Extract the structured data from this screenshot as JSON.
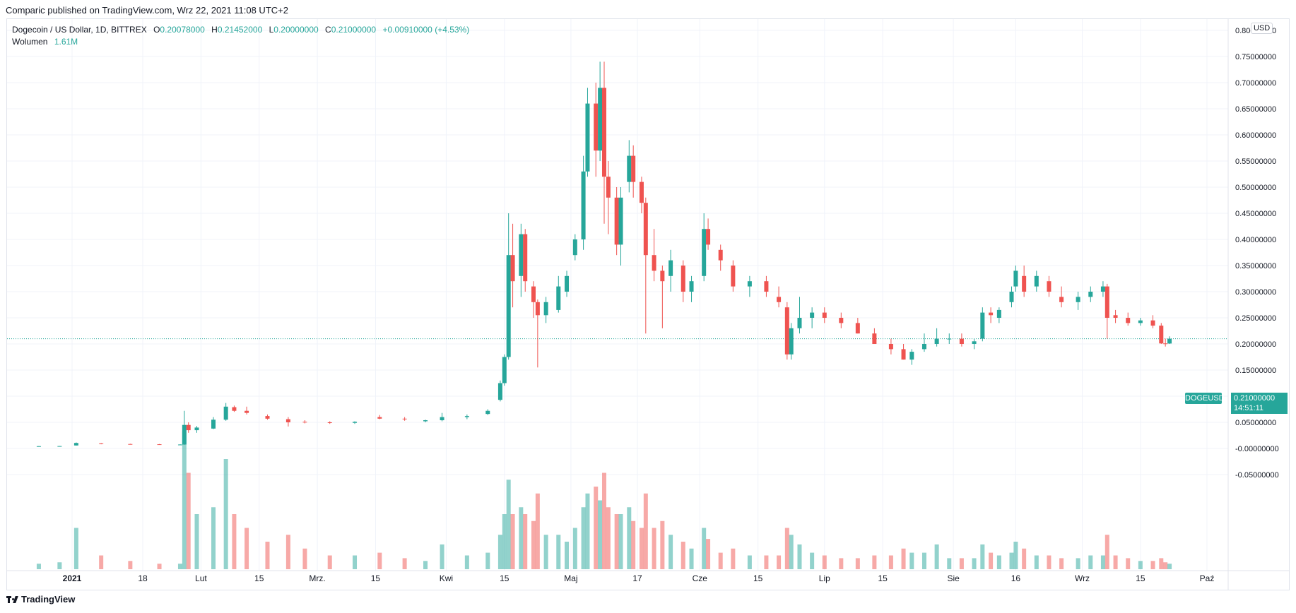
{
  "header": {
    "published_line": "Comparic published on TradingView.com, Wrz 22, 2021 11:08 UTC+2"
  },
  "legend": {
    "symbol": "Dogecoin / US Dollar, 1D, BITTREX",
    "o_key": "O",
    "o": "0.20078000",
    "h_key": "H",
    "h": "0.21452000",
    "l_key": "L",
    "l": "0.20000000",
    "c_key": "C",
    "c": "0.21000000",
    "change": "+0.00910000 (+4.53%)",
    "volume_label": "Wolumen",
    "volume_value": "1.61M"
  },
  "axis": {
    "currency": "USD",
    "last_symbol": "DOGEUSD",
    "last_price": "0.21000000",
    "countdown": "14:51:11"
  },
  "footer": {
    "brand": "TradingView"
  },
  "colors": {
    "up": "#26a69a",
    "down": "#ef5350",
    "grid": "#f0f3fa"
  },
  "chart_data": {
    "type": "candlestick",
    "symbol": "DOGEUSD",
    "ylim": [
      -0.07,
      0.81
    ],
    "yticks": [
      "0.80000000",
      "0.75000000",
      "0.70000000",
      "0.65000000",
      "0.60000000",
      "0.55000000",
      "0.50000000",
      "0.45000000",
      "0.40000000",
      "0.35000000",
      "0.30000000",
      "0.25000000",
      "0.20000000",
      "0.15000000",
      "0.10000000",
      "0.05000000",
      "-0.00000000",
      "-0.05000000"
    ],
    "ytick_values": [
      0.8,
      0.75,
      0.7,
      0.65,
      0.6,
      0.55,
      0.5,
      0.45,
      0.4,
      0.35,
      0.3,
      0.25,
      0.2,
      0.15,
      0.1,
      0.05,
      0.0,
      -0.05
    ],
    "xticks": [
      {
        "label": "2021",
        "date": "2021-01-01"
      },
      {
        "label": "18",
        "date": "2021-01-18"
      },
      {
        "label": "Lut",
        "date": "2021-02-01"
      },
      {
        "label": "15",
        "date": "2021-02-15"
      },
      {
        "label": "Mrz.",
        "date": "2021-03-01"
      },
      {
        "label": "15",
        "date": "2021-03-15"
      },
      {
        "label": "Kwi",
        "date": "2021-04-01"
      },
      {
        "label": "15",
        "date": "2021-04-15"
      },
      {
        "label": "Maj",
        "date": "2021-05-01"
      },
      {
        "label": "17",
        "date": "2021-05-17"
      },
      {
        "label": "Cze",
        "date": "2021-06-01"
      },
      {
        "label": "15",
        "date": "2021-06-15"
      },
      {
        "label": "Lip",
        "date": "2021-07-01"
      },
      {
        "label": "15",
        "date": "2021-07-15"
      },
      {
        "label": "Sie",
        "date": "2021-08-01"
      },
      {
        "label": "16",
        "date": "2021-08-16"
      },
      {
        "label": "Wrz",
        "date": "2021-09-01"
      },
      {
        "label": "15",
        "date": "2021-09-15"
      },
      {
        "label": "Paź",
        "date": "2021-10-01"
      }
    ],
    "last_price": 0.21,
    "candles": [
      {
        "d": "2020-12-24",
        "o": 0.0042,
        "h": 0.0045,
        "l": 0.0038,
        "c": 0.0044,
        "v": 0.04
      },
      {
        "d": "2020-12-29",
        "o": 0.0045,
        "h": 0.0048,
        "l": 0.0043,
        "c": 0.0046,
        "v": 0.05
      },
      {
        "d": "2021-01-02",
        "o": 0.0057,
        "h": 0.0115,
        "l": 0.0055,
        "c": 0.0105,
        "v": 0.3
      },
      {
        "d": "2021-01-08",
        "o": 0.0098,
        "h": 0.0102,
        "l": 0.008,
        "c": 0.009,
        "v": 0.1
      },
      {
        "d": "2021-01-15",
        "o": 0.0085,
        "h": 0.009,
        "l": 0.0075,
        "c": 0.008,
        "v": 0.06
      },
      {
        "d": "2021-01-22",
        "o": 0.008,
        "h": 0.0085,
        "l": 0.007,
        "c": 0.0075,
        "v": 0.04
      },
      {
        "d": "2021-01-27",
        "o": 0.0073,
        "h": 0.008,
        "l": 0.007,
        "c": 0.0075,
        "v": 0.04
      },
      {
        "d": "2021-01-28",
        "o": 0.0075,
        "h": 0.072,
        "l": 0.007,
        "c": 0.045,
        "v": 1.0
      },
      {
        "d": "2021-01-29",
        "o": 0.045,
        "h": 0.05,
        "l": 0.03,
        "c": 0.035,
        "v": 0.7
      },
      {
        "d": "2021-01-31",
        "o": 0.035,
        "h": 0.043,
        "l": 0.03,
        "c": 0.04,
        "v": 0.4
      },
      {
        "d": "2021-02-04",
        "o": 0.038,
        "h": 0.06,
        "l": 0.037,
        "c": 0.055,
        "v": 0.45
      },
      {
        "d": "2021-02-07",
        "o": 0.055,
        "h": 0.087,
        "l": 0.053,
        "c": 0.08,
        "v": 0.8
      },
      {
        "d": "2021-02-09",
        "o": 0.079,
        "h": 0.082,
        "l": 0.07,
        "c": 0.072,
        "v": 0.4
      },
      {
        "d": "2021-02-12",
        "o": 0.072,
        "h": 0.08,
        "l": 0.065,
        "c": 0.068,
        "v": 0.3
      },
      {
        "d": "2021-02-17",
        "o": 0.062,
        "h": 0.065,
        "l": 0.055,
        "c": 0.057,
        "v": 0.2
      },
      {
        "d": "2021-02-22",
        "o": 0.056,
        "h": 0.06,
        "l": 0.042,
        "c": 0.05,
        "v": 0.25
      },
      {
        "d": "2021-02-26",
        "o": 0.051,
        "h": 0.054,
        "l": 0.048,
        "c": 0.05,
        "v": 0.15
      },
      {
        "d": "2021-03-04",
        "o": 0.05,
        "h": 0.052,
        "l": 0.047,
        "c": 0.049,
        "v": 0.1
      },
      {
        "d": "2021-03-10",
        "o": 0.049,
        "h": 0.052,
        "l": 0.047,
        "c": 0.051,
        "v": 0.1
      },
      {
        "d": "2021-03-16",
        "o": 0.06,
        "h": 0.064,
        "l": 0.056,
        "c": 0.057,
        "v": 0.12
      },
      {
        "d": "2021-03-22",
        "o": 0.057,
        "h": 0.06,
        "l": 0.053,
        "c": 0.056,
        "v": 0.08
      },
      {
        "d": "2021-03-27",
        "o": 0.052,
        "h": 0.055,
        "l": 0.05,
        "c": 0.054,
        "v": 0.06
      },
      {
        "d": "2021-03-31",
        "o": 0.054,
        "h": 0.068,
        "l": 0.052,
        "c": 0.06,
        "v": 0.18
      },
      {
        "d": "2021-04-06",
        "o": 0.06,
        "h": 0.065,
        "l": 0.056,
        "c": 0.062,
        "v": 0.1
      },
      {
        "d": "2021-04-11",
        "o": 0.066,
        "h": 0.075,
        "l": 0.064,
        "c": 0.072,
        "v": 0.12
      },
      {
        "d": "2021-04-14",
        "o": 0.093,
        "h": 0.13,
        "l": 0.09,
        "c": 0.125,
        "v": 0.25
      },
      {
        "d": "2021-04-15",
        "o": 0.125,
        "h": 0.18,
        "l": 0.12,
        "c": 0.175,
        "v": 0.4
      },
      {
        "d": "2021-04-16",
        "o": 0.175,
        "h": 0.45,
        "l": 0.17,
        "c": 0.37,
        "v": 0.65
      },
      {
        "d": "2021-04-17",
        "o": 0.37,
        "h": 0.43,
        "l": 0.27,
        "c": 0.32,
        "v": 0.4
      },
      {
        "d": "2021-04-19",
        "o": 0.33,
        "h": 0.43,
        "l": 0.29,
        "c": 0.41,
        "v": 0.45
      },
      {
        "d": "2021-04-20",
        "o": 0.41,
        "h": 0.42,
        "l": 0.3,
        "c": 0.32,
        "v": 0.4
      },
      {
        "d": "2021-04-22",
        "o": 0.31,
        "h": 0.32,
        "l": 0.25,
        "c": 0.28,
        "v": 0.35
      },
      {
        "d": "2021-04-23",
        "o": 0.28,
        "h": 0.285,
        "l": 0.155,
        "c": 0.255,
        "v": 0.55
      },
      {
        "d": "2021-04-25",
        "o": 0.255,
        "h": 0.29,
        "l": 0.24,
        "c": 0.28,
        "v": 0.25
      },
      {
        "d": "2021-04-28",
        "o": 0.265,
        "h": 0.33,
        "l": 0.26,
        "c": 0.31,
        "v": 0.25
      },
      {
        "d": "2021-04-30",
        "o": 0.3,
        "h": 0.34,
        "l": 0.29,
        "c": 0.33,
        "v": 0.2
      },
      {
        "d": "2021-05-02",
        "o": 0.37,
        "h": 0.41,
        "l": 0.36,
        "c": 0.4,
        "v": 0.3
      },
      {
        "d": "2021-05-04",
        "o": 0.4,
        "h": 0.56,
        "l": 0.38,
        "c": 0.53,
        "v": 0.45
      },
      {
        "d": "2021-05-05",
        "o": 0.53,
        "h": 0.69,
        "l": 0.52,
        "c": 0.66,
        "v": 0.55
      },
      {
        "d": "2021-05-07",
        "o": 0.66,
        "h": 0.7,
        "l": 0.52,
        "c": 0.57,
        "v": 0.6
      },
      {
        "d": "2021-05-08",
        "o": 0.57,
        "h": 0.74,
        "l": 0.55,
        "c": 0.69,
        "v": 0.5
      },
      {
        "d": "2021-05-09",
        "o": 0.69,
        "h": 0.74,
        "l": 0.43,
        "c": 0.52,
        "v": 0.7
      },
      {
        "d": "2021-05-10",
        "o": 0.52,
        "h": 0.55,
        "l": 0.41,
        "c": 0.48,
        "v": 0.45
      },
      {
        "d": "2021-05-12",
        "o": 0.48,
        "h": 0.5,
        "l": 0.37,
        "c": 0.39,
        "v": 0.4
      },
      {
        "d": "2021-05-13",
        "o": 0.39,
        "h": 0.5,
        "l": 0.35,
        "c": 0.48,
        "v": 0.4
      },
      {
        "d": "2021-05-15",
        "o": 0.51,
        "h": 0.59,
        "l": 0.49,
        "c": 0.56,
        "v": 0.45
      },
      {
        "d": "2021-05-16",
        "o": 0.56,
        "h": 0.58,
        "l": 0.48,
        "c": 0.51,
        "v": 0.35
      },
      {
        "d": "2021-05-18",
        "o": 0.51,
        "h": 0.52,
        "l": 0.45,
        "c": 0.47,
        "v": 0.3
      },
      {
        "d": "2021-05-19",
        "o": 0.47,
        "h": 0.48,
        "l": 0.22,
        "c": 0.37,
        "v": 0.55
      },
      {
        "d": "2021-05-21",
        "o": 0.37,
        "h": 0.42,
        "l": 0.32,
        "c": 0.34,
        "v": 0.3
      },
      {
        "d": "2021-05-23",
        "o": 0.34,
        "h": 0.35,
        "l": 0.23,
        "c": 0.32,
        "v": 0.35
      },
      {
        "d": "2021-05-25",
        "o": 0.33,
        "h": 0.38,
        "l": 0.3,
        "c": 0.36,
        "v": 0.25
      },
      {
        "d": "2021-05-28",
        "o": 0.35,
        "h": 0.36,
        "l": 0.28,
        "c": 0.3,
        "v": 0.2
      },
      {
        "d": "2021-05-30",
        "o": 0.3,
        "h": 0.33,
        "l": 0.28,
        "c": 0.32,
        "v": 0.15
      },
      {
        "d": "2021-06-02",
        "o": 0.33,
        "h": 0.45,
        "l": 0.32,
        "c": 0.42,
        "v": 0.3
      },
      {
        "d": "2021-06-03",
        "o": 0.42,
        "h": 0.44,
        "l": 0.38,
        "c": 0.39,
        "v": 0.22
      },
      {
        "d": "2021-06-06",
        "o": 0.38,
        "h": 0.39,
        "l": 0.34,
        "c": 0.36,
        "v": 0.12
      },
      {
        "d": "2021-06-09",
        "o": 0.35,
        "h": 0.36,
        "l": 0.3,
        "c": 0.31,
        "v": 0.15
      },
      {
        "d": "2021-06-13",
        "o": 0.31,
        "h": 0.33,
        "l": 0.29,
        "c": 0.32,
        "v": 0.1
      },
      {
        "d": "2021-06-17",
        "o": 0.32,
        "h": 0.33,
        "l": 0.29,
        "c": 0.3,
        "v": 0.1
      },
      {
        "d": "2021-06-20",
        "o": 0.29,
        "h": 0.31,
        "l": 0.27,
        "c": 0.28,
        "v": 0.1
      },
      {
        "d": "2021-06-22",
        "o": 0.27,
        "h": 0.28,
        "l": 0.17,
        "c": 0.18,
        "v": 0.3
      },
      {
        "d": "2021-06-23",
        "o": 0.18,
        "h": 0.24,
        "l": 0.17,
        "c": 0.23,
        "v": 0.25
      },
      {
        "d": "2021-06-25",
        "o": 0.23,
        "h": 0.29,
        "l": 0.22,
        "c": 0.25,
        "v": 0.18
      },
      {
        "d": "2021-06-28",
        "o": 0.25,
        "h": 0.27,
        "l": 0.23,
        "c": 0.26,
        "v": 0.12
      },
      {
        "d": "2021-07-01",
        "o": 0.26,
        "h": 0.27,
        "l": 0.24,
        "c": 0.25,
        "v": 0.1
      },
      {
        "d": "2021-07-05",
        "o": 0.25,
        "h": 0.26,
        "l": 0.23,
        "c": 0.24,
        "v": 0.08
      },
      {
        "d": "2021-07-09",
        "o": 0.24,
        "h": 0.25,
        "l": 0.22,
        "c": 0.22,
        "v": 0.08
      },
      {
        "d": "2021-07-13",
        "o": 0.22,
        "h": 0.23,
        "l": 0.2,
        "c": 0.2,
        "v": 0.1
      },
      {
        "d": "2021-07-17",
        "o": 0.2,
        "h": 0.21,
        "l": 0.18,
        "c": 0.19,
        "v": 0.1
      },
      {
        "d": "2021-07-20",
        "o": 0.19,
        "h": 0.2,
        "l": 0.17,
        "c": 0.17,
        "v": 0.15
      },
      {
        "d": "2021-07-22",
        "o": 0.17,
        "h": 0.19,
        "l": 0.16,
        "c": 0.185,
        "v": 0.12
      },
      {
        "d": "2021-07-25",
        "o": 0.19,
        "h": 0.22,
        "l": 0.185,
        "c": 0.2,
        "v": 0.12
      },
      {
        "d": "2021-07-28",
        "o": 0.2,
        "h": 0.23,
        "l": 0.195,
        "c": 0.21,
        "v": 0.18
      },
      {
        "d": "2021-07-31",
        "o": 0.21,
        "h": 0.22,
        "l": 0.2,
        "c": 0.21,
        "v": 0.08
      },
      {
        "d": "2021-08-03",
        "o": 0.21,
        "h": 0.22,
        "l": 0.195,
        "c": 0.2,
        "v": 0.08
      },
      {
        "d": "2021-08-06",
        "o": 0.2,
        "h": 0.21,
        "l": 0.19,
        "c": 0.205,
        "v": 0.08
      },
      {
        "d": "2021-08-08",
        "o": 0.21,
        "h": 0.27,
        "l": 0.205,
        "c": 0.26,
        "v": 0.18
      },
      {
        "d": "2021-08-10",
        "o": 0.26,
        "h": 0.27,
        "l": 0.24,
        "c": 0.255,
        "v": 0.12
      },
      {
        "d": "2021-08-12",
        "o": 0.25,
        "h": 0.27,
        "l": 0.24,
        "c": 0.265,
        "v": 0.1
      },
      {
        "d": "2021-08-15",
        "o": 0.28,
        "h": 0.31,
        "l": 0.27,
        "c": 0.3,
        "v": 0.12
      },
      {
        "d": "2021-08-16",
        "o": 0.31,
        "h": 0.35,
        "l": 0.3,
        "c": 0.34,
        "v": 0.2
      },
      {
        "d": "2021-08-18",
        "o": 0.33,
        "h": 0.35,
        "l": 0.29,
        "c": 0.3,
        "v": 0.15
      },
      {
        "d": "2021-08-21",
        "o": 0.31,
        "h": 0.34,
        "l": 0.3,
        "c": 0.33,
        "v": 0.1
      },
      {
        "d": "2021-08-24",
        "o": 0.32,
        "h": 0.33,
        "l": 0.29,
        "c": 0.3,
        "v": 0.1
      },
      {
        "d": "2021-08-27",
        "o": 0.29,
        "h": 0.31,
        "l": 0.27,
        "c": 0.28,
        "v": 0.08
      },
      {
        "d": "2021-08-31",
        "o": 0.28,
        "h": 0.3,
        "l": 0.265,
        "c": 0.29,
        "v": 0.08
      },
      {
        "d": "2021-09-03",
        "o": 0.29,
        "h": 0.31,
        "l": 0.28,
        "c": 0.3,
        "v": 0.1
      },
      {
        "d": "2021-09-06",
        "o": 0.3,
        "h": 0.32,
        "l": 0.29,
        "c": 0.31,
        "v": 0.1
      },
      {
        "d": "2021-09-07",
        "o": 0.31,
        "h": 0.315,
        "l": 0.21,
        "c": 0.25,
        "v": 0.25
      },
      {
        "d": "2021-09-09",
        "o": 0.255,
        "h": 0.265,
        "l": 0.24,
        "c": 0.25,
        "v": 0.1
      },
      {
        "d": "2021-09-12",
        "o": 0.25,
        "h": 0.26,
        "l": 0.235,
        "c": 0.24,
        "v": 0.08
      },
      {
        "d": "2021-09-15",
        "o": 0.24,
        "h": 0.25,
        "l": 0.235,
        "c": 0.245,
        "v": 0.06
      },
      {
        "d": "2021-09-18",
        "o": 0.245,
        "h": 0.255,
        "l": 0.23,
        "c": 0.235,
        "v": 0.06
      },
      {
        "d": "2021-09-20",
        "o": 0.235,
        "h": 0.24,
        "l": 0.2,
        "c": 0.201,
        "v": 0.08
      },
      {
        "d": "2021-09-21",
        "o": 0.201,
        "h": 0.21,
        "l": 0.195,
        "c": 0.2,
        "v": 0.05
      },
      {
        "d": "2021-09-22",
        "o": 0.2008,
        "h": 0.2145,
        "l": 0.2,
        "c": 0.21,
        "v": 0.04
      }
    ]
  }
}
